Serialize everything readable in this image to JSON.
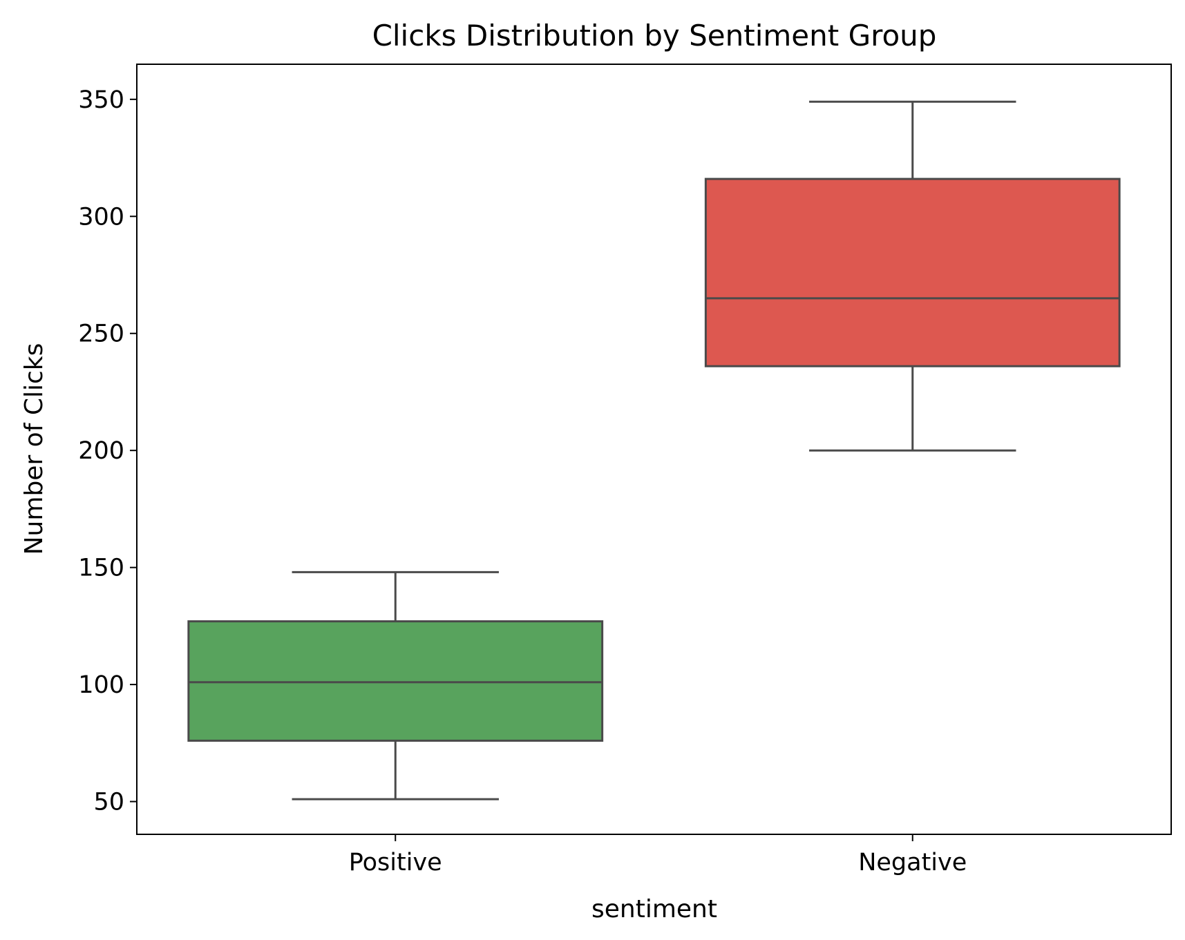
{
  "chart_data": {
    "type": "boxplot",
    "title": "Clicks Distribution by Sentiment Group",
    "xlabel": "sentiment",
    "ylabel": "Number of Clicks",
    "categories": [
      "Positive",
      "Negative"
    ],
    "ylim": [
      36,
      365
    ],
    "yticks": [
      50,
      100,
      150,
      200,
      250,
      300,
      350
    ],
    "ytick_labels": [
      "50",
      "100",
      "150",
      "200",
      "250",
      "300",
      "350"
    ],
    "grid": false,
    "legend": "none",
    "boxes": [
      {
        "category": "Positive",
        "whisker_low": 51,
        "q1": 76,
        "median": 101,
        "q3": 127,
        "whisker_high": 148,
        "color": "#58a35d"
      },
      {
        "category": "Negative",
        "whisker_low": 200,
        "q1": 236,
        "median": 265,
        "q3": 316,
        "whisker_high": 349,
        "color": "#dd5850"
      }
    ],
    "line_color": "#4a4a4a"
  }
}
